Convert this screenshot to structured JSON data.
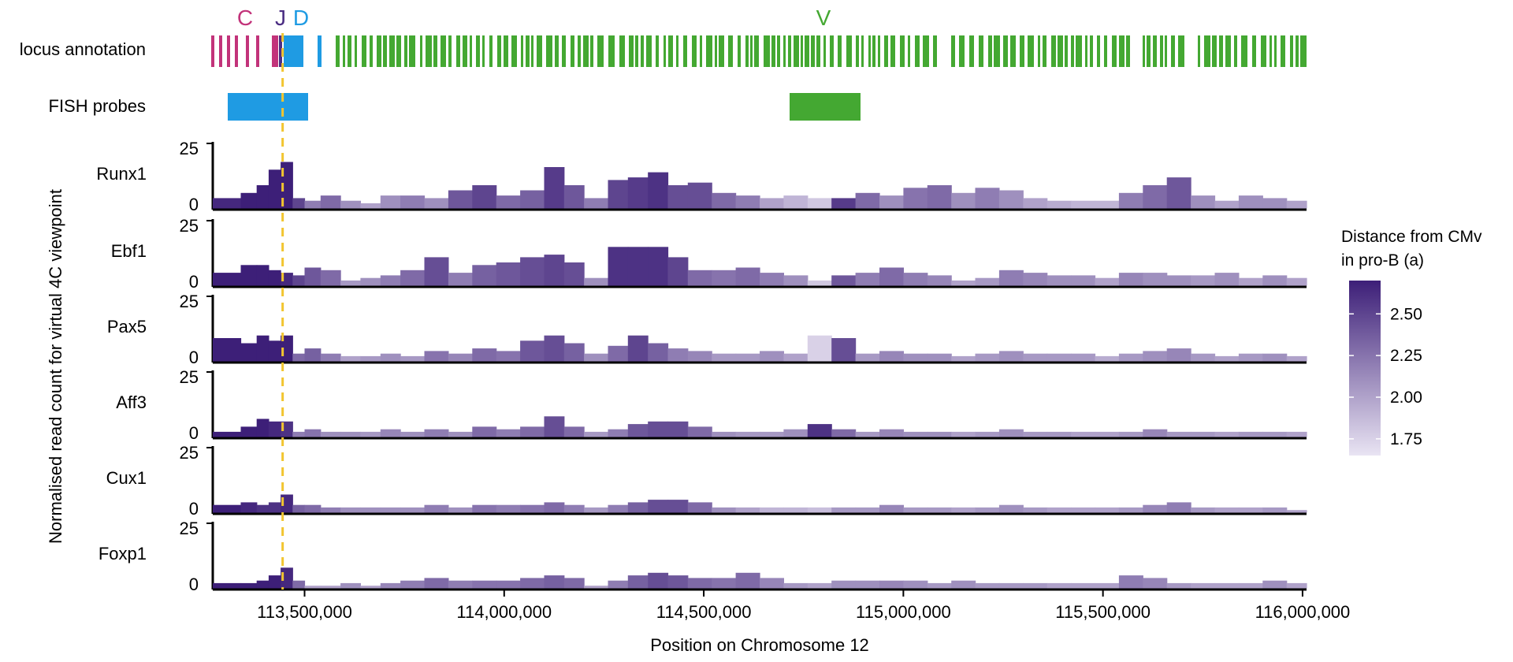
{
  "colors": {
    "constant": "#c2337a",
    "joining": "#4b2e83",
    "diversity": "#1f9be3",
    "variable": "#44a832",
    "fish_probe_d": "#1f9be3",
    "fish_probe_v": "#44a832",
    "guide_line": "#f2c530",
    "scale_low": "#e9e4f3",
    "scale_high": "#3d1f78",
    "axis": "#000000"
  },
  "chart_data": {
    "type": "area",
    "xlabel": "Position on Chromosome 12",
    "ylabel": "Normalised read count for virtual 4C viewpoint",
    "xlim": [
      113270000,
      116010000
    ],
    "x_ticks": [
      113500000,
      114000000,
      114500000,
      115000000,
      115500000,
      116000000
    ],
    "x_tick_labels": [
      "113,500,000",
      "114,000,000",
      "114,500,000",
      "115,000,000",
      "115,500,000",
      "116,000,000"
    ],
    "ylim": [
      0,
      25
    ],
    "y_tick_labels": [
      "25",
      "0"
    ],
    "viewpoint_position": 113445000,
    "annotation_track": {
      "label": "locus annotation",
      "segment_labels": [
        {
          "text": "C",
          "position": 113350000,
          "group": "constant"
        },
        {
          "text": "J",
          "position": 113440000,
          "group": "joining"
        },
        {
          "text": "D",
          "position": 113485000,
          "group": "diversity"
        },
        {
          "text": "V",
          "position": 114890000,
          "group": "variable"
        }
      ]
    },
    "fish_track": {
      "label": "FISH probes",
      "probes": [
        {
          "name": "D",
          "start": 113310000,
          "end": 113515000
        },
        {
          "name": "V",
          "start": 114685000,
          "end": 114865000
        }
      ]
    },
    "color_scale": {
      "title_line1": "Distance from CMv",
      "title_line2": "in pro-B (a)",
      "min": 1.65,
      "max": 2.7,
      "ticks": [
        "2.50",
        "2.25",
        "2.00",
        "1.75"
      ],
      "tick_values": [
        2.5,
        2.25,
        2.0,
        1.75
      ]
    },
    "series": [
      {
        "name": "Runx1",
        "x": [
          113270000,
          113340000,
          113380000,
          113410000,
          113440000,
          113470000,
          113500000,
          113540000,
          113590000,
          113640000,
          113690000,
          113740000,
          113800000,
          113860000,
          113920000,
          113980000,
          114040000,
          114100000,
          114150000,
          114200000,
          114260000,
          114310000,
          114360000,
          114410000,
          114460000,
          114520000,
          114580000,
          114640000,
          114700000,
          114760000,
          114820000,
          114880000,
          114940000,
          115000000,
          115060000,
          115120000,
          115180000,
          115240000,
          115300000,
          115360000,
          115420000,
          115480000,
          115540000,
          115600000,
          115660000,
          115720000,
          115780000,
          115840000,
          115900000,
          115960000
        ],
        "values": [
          4,
          6,
          9,
          15,
          18,
          4,
          3,
          5,
          3,
          2,
          5,
          5,
          4,
          7,
          9,
          5,
          7,
          16,
          9,
          4,
          11,
          12,
          14,
          9,
          10,
          6,
          5,
          4,
          5,
          4,
          4,
          6,
          5,
          8,
          9,
          6,
          8,
          7,
          4,
          3,
          3,
          3,
          6,
          9,
          12,
          5,
          3,
          5,
          4,
          3
        ],
        "distance": [
          2.65,
          2.7,
          2.7,
          2.7,
          2.7,
          2.5,
          2.2,
          2.3,
          2.1,
          2.0,
          2.1,
          2.2,
          2.1,
          2.4,
          2.5,
          2.3,
          2.35,
          2.55,
          2.4,
          2.2,
          2.5,
          2.55,
          2.6,
          2.45,
          2.45,
          2.3,
          2.2,
          2.0,
          1.9,
          1.8,
          2.55,
          2.3,
          2.1,
          2.25,
          2.3,
          2.1,
          2.2,
          2.1,
          2.0,
          1.95,
          1.9,
          1.9,
          2.2,
          2.3,
          2.4,
          2.1,
          2.0,
          2.1,
          2.1,
          2.0
        ]
      },
      {
        "name": "Ebf1",
        "x": [
          113270000,
          113340000,
          113380000,
          113410000,
          113440000,
          113470000,
          113500000,
          113540000,
          113590000,
          113640000,
          113690000,
          113740000,
          113800000,
          113860000,
          113920000,
          113980000,
          114040000,
          114100000,
          114150000,
          114200000,
          114260000,
          114310000,
          114360000,
          114410000,
          114460000,
          114520000,
          114580000,
          114640000,
          114700000,
          114760000,
          114820000,
          114880000,
          114940000,
          115000000,
          115060000,
          115120000,
          115180000,
          115240000,
          115300000,
          115360000,
          115420000,
          115480000,
          115540000,
          115600000,
          115660000,
          115720000,
          115780000,
          115840000,
          115900000,
          115960000
        ],
        "values": [
          5,
          8,
          8,
          6,
          5,
          4,
          7,
          6,
          2,
          3,
          4,
          6,
          11,
          5,
          8,
          9,
          11,
          12,
          9,
          3,
          15,
          15,
          15,
          11,
          6,
          6,
          7,
          5,
          4,
          2,
          4,
          5,
          7,
          5,
          4,
          2,
          3,
          6,
          5,
          4,
          4,
          3,
          5,
          5,
          4,
          4,
          5,
          3,
          4,
          3
        ],
        "distance": [
          2.7,
          2.7,
          2.7,
          2.7,
          2.65,
          2.5,
          2.4,
          2.3,
          2.05,
          2.1,
          2.2,
          2.3,
          2.45,
          2.2,
          2.35,
          2.4,
          2.45,
          2.5,
          2.45,
          2.1,
          2.6,
          2.6,
          2.6,
          2.5,
          2.3,
          2.25,
          2.3,
          2.2,
          2.1,
          1.8,
          2.4,
          2.2,
          2.3,
          2.2,
          2.15,
          2.0,
          2.05,
          2.2,
          2.15,
          2.1,
          2.1,
          2.0,
          2.15,
          2.1,
          2.1,
          2.05,
          2.1,
          2.0,
          2.1,
          2.0
        ]
      },
      {
        "name": "Pax5",
        "x": [
          113270000,
          113340000,
          113380000,
          113410000,
          113440000,
          113470000,
          113500000,
          113540000,
          113590000,
          113640000,
          113690000,
          113740000,
          113800000,
          113860000,
          113920000,
          113980000,
          114040000,
          114100000,
          114150000,
          114200000,
          114260000,
          114310000,
          114360000,
          114410000,
          114460000,
          114520000,
          114580000,
          114640000,
          114700000,
          114760000,
          114820000,
          114880000,
          114940000,
          115000000,
          115060000,
          115120000,
          115180000,
          115240000,
          115300000,
          115360000,
          115420000,
          115480000,
          115540000,
          115600000,
          115660000,
          115720000,
          115780000,
          115840000,
          115900000,
          115960000
        ],
        "values": [
          9,
          7,
          10,
          8,
          10,
          3,
          5,
          3,
          2,
          2,
          3,
          2,
          4,
          3,
          5,
          4,
          8,
          10,
          7,
          3,
          6,
          10,
          7,
          5,
          4,
          3,
          3,
          4,
          3,
          10,
          9,
          3,
          4,
          3,
          3,
          2,
          3,
          4,
          3,
          3,
          3,
          2,
          3,
          4,
          5,
          3,
          2,
          3,
          3,
          2
        ],
        "distance": [
          2.7,
          2.7,
          2.7,
          2.7,
          2.7,
          2.3,
          2.35,
          2.2,
          2.0,
          2.05,
          2.1,
          2.05,
          2.25,
          2.15,
          2.3,
          2.25,
          2.4,
          2.45,
          2.35,
          2.1,
          2.3,
          2.5,
          2.35,
          2.2,
          2.15,
          2.05,
          2.05,
          2.1,
          2.0,
          1.75,
          2.45,
          2.05,
          2.15,
          2.1,
          2.1,
          2.0,
          2.05,
          2.1,
          2.05,
          2.05,
          2.05,
          1.95,
          2.05,
          2.1,
          2.15,
          2.05,
          2.0,
          2.05,
          2.1,
          2.0
        ]
      },
      {
        "name": "Aff3",
        "x": [
          113270000,
          113340000,
          113380000,
          113410000,
          113440000,
          113470000,
          113500000,
          113540000,
          113590000,
          113640000,
          113690000,
          113740000,
          113800000,
          113860000,
          113920000,
          113980000,
          114040000,
          114100000,
          114150000,
          114200000,
          114260000,
          114310000,
          114360000,
          114410000,
          114460000,
          114520000,
          114580000,
          114640000,
          114700000,
          114760000,
          114820000,
          114880000,
          114940000,
          115000000,
          115060000,
          115120000,
          115180000,
          115240000,
          115300000,
          115360000,
          115420000,
          115480000,
          115540000,
          115600000,
          115660000,
          115720000,
          115780000,
          115840000,
          115900000,
          115960000
        ],
        "values": [
          2,
          4,
          7,
          6,
          6,
          2,
          3,
          2,
          2,
          2,
          3,
          2,
          3,
          2,
          4,
          3,
          4,
          8,
          4,
          2,
          3,
          5,
          6,
          6,
          4,
          2,
          2,
          2,
          3,
          5,
          3,
          2,
          3,
          2,
          2,
          2,
          2,
          3,
          2,
          2,
          2,
          2,
          2,
          3,
          2,
          2,
          2,
          2,
          2,
          2
        ],
        "distance": [
          2.7,
          2.7,
          2.7,
          2.65,
          2.6,
          2.2,
          2.25,
          2.1,
          2.1,
          2.05,
          2.15,
          2.1,
          2.2,
          2.1,
          2.3,
          2.2,
          2.3,
          2.45,
          2.3,
          2.05,
          2.2,
          2.4,
          2.45,
          2.45,
          2.3,
          2.1,
          2.05,
          2.05,
          2.1,
          2.6,
          2.3,
          2.05,
          2.15,
          2.1,
          2.1,
          2.0,
          2.05,
          2.1,
          2.05,
          2.05,
          2.0,
          2.0,
          2.05,
          2.15,
          2.05,
          2.05,
          2.0,
          2.05,
          2.05,
          2.0
        ]
      },
      {
        "name": "Cux1",
        "x": [
          113270000,
          113340000,
          113380000,
          113410000,
          113440000,
          113470000,
          113500000,
          113540000,
          113590000,
          113640000,
          113690000,
          113740000,
          113800000,
          113860000,
          113920000,
          113980000,
          114040000,
          114100000,
          114150000,
          114200000,
          114260000,
          114310000,
          114360000,
          114410000,
          114460000,
          114520000,
          114580000,
          114640000,
          114700000,
          114760000,
          114820000,
          114880000,
          114940000,
          115000000,
          115060000,
          115120000,
          115180000,
          115240000,
          115300000,
          115360000,
          115420000,
          115480000,
          115540000,
          115600000,
          115660000,
          115720000,
          115780000,
          115840000,
          115900000,
          115960000
        ],
        "values": [
          3,
          4,
          3,
          4,
          7,
          3,
          3,
          2,
          2,
          2,
          2,
          2,
          3,
          2,
          3,
          3,
          3,
          4,
          3,
          2,
          3,
          4,
          5,
          5,
          4,
          2,
          2,
          2,
          2,
          2,
          2,
          2,
          3,
          2,
          2,
          2,
          2,
          3,
          2,
          2,
          2,
          2,
          2,
          3,
          4,
          2,
          2,
          2,
          2,
          1
        ],
        "distance": [
          2.7,
          2.65,
          2.6,
          2.6,
          2.65,
          2.35,
          2.3,
          2.2,
          2.1,
          2.1,
          2.1,
          2.1,
          2.2,
          2.1,
          2.25,
          2.2,
          2.25,
          2.3,
          2.2,
          2.05,
          2.2,
          2.35,
          2.45,
          2.45,
          2.3,
          2.1,
          2.0,
          1.9,
          1.9,
          1.85,
          2.05,
          2.05,
          2.15,
          2.05,
          2.05,
          2.0,
          2.05,
          2.1,
          2.05,
          2.0,
          2.0,
          2.0,
          2.05,
          2.15,
          2.2,
          2.05,
          2.0,
          2.0,
          2.05,
          2.0
        ]
      },
      {
        "name": "Foxp1",
        "x": [
          113270000,
          113340000,
          113380000,
          113410000,
          113440000,
          113470000,
          113500000,
          113540000,
          113590000,
          113640000,
          113690000,
          113740000,
          113800000,
          113860000,
          113920000,
          113980000,
          114040000,
          114100000,
          114150000,
          114200000,
          114260000,
          114310000,
          114360000,
          114410000,
          114460000,
          114520000,
          114580000,
          114640000,
          114700000,
          114760000,
          114820000,
          114880000,
          114940000,
          115000000,
          115060000,
          115120000,
          115180000,
          115240000,
          115300000,
          115360000,
          115420000,
          115480000,
          115540000,
          115600000,
          115660000,
          115720000,
          115780000,
          115840000,
          115900000,
          115960000
        ],
        "values": [
          2,
          2,
          3,
          5,
          8,
          3,
          1,
          1,
          2,
          1,
          2,
          3,
          4,
          3,
          3,
          3,
          4,
          5,
          4,
          1,
          3,
          5,
          6,
          5,
          4,
          4,
          6,
          4,
          2,
          2,
          3,
          3,
          3,
          3,
          2,
          3,
          2,
          2,
          2,
          2,
          2,
          2,
          5,
          4,
          2,
          2,
          2,
          2,
          3,
          2
        ],
        "distance": [
          2.7,
          2.7,
          2.7,
          2.7,
          2.65,
          2.3,
          2.0,
          2.0,
          2.1,
          2.0,
          2.15,
          2.2,
          2.3,
          2.2,
          2.25,
          2.25,
          2.3,
          2.35,
          2.3,
          2.0,
          2.2,
          2.35,
          2.45,
          2.4,
          2.3,
          2.25,
          2.3,
          2.15,
          2.05,
          2.0,
          2.1,
          2.1,
          2.15,
          2.1,
          2.05,
          2.1,
          2.05,
          2.05,
          2.05,
          2.0,
          2.0,
          2.0,
          2.2,
          2.15,
          2.05,
          2.0,
          2.0,
          2.0,
          2.1,
          2.0
        ]
      }
    ]
  }
}
